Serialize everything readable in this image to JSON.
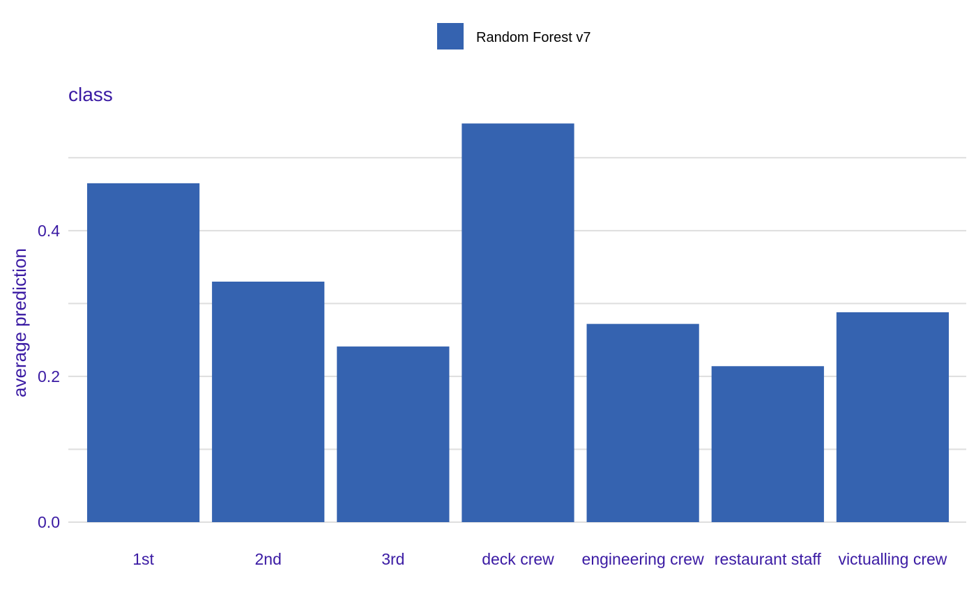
{
  "chart_data": {
    "type": "bar",
    "facet_title": "class",
    "xlabel": "",
    "ylabel": "average prediction",
    "categories": [
      "1st",
      "2nd",
      "3rd",
      "deck crew",
      "engineering crew",
      "restaurant staff",
      "victualling crew"
    ],
    "series": [
      {
        "name": "Random Forest v7",
        "color": "#3563b0",
        "values": [
          0.465,
          0.33,
          0.241,
          0.547,
          0.272,
          0.214,
          0.288
        ]
      }
    ],
    "ylim": [
      0,
      0.55
    ],
    "yticks": [
      0.0,
      0.2,
      0.4
    ],
    "ytick_labels": [
      "0.0",
      "0.2",
      "0.4"
    ],
    "minor_gridlines": [
      0.1,
      0.3,
      0.5
    ],
    "grid": true,
    "legend_position": "top",
    "colors": {
      "text": "#3a1aa3",
      "grid": "#dedede",
      "bar": "#3563b0"
    }
  }
}
